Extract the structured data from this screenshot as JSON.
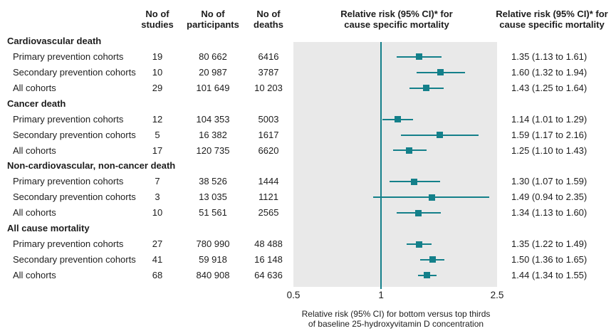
{
  "colors": {
    "accent": "#14808a",
    "plot_background": "#e9e9e9",
    "text": "#1d1d1d"
  },
  "header": {
    "studies": "No of\nstudies",
    "participants": "No of\nparticipants",
    "deaths": "No of\ndeaths",
    "plot": "Relative risk (95% CI)* for\ncause specific mortality",
    "values": "Relative risk (95% CI)* for\ncause specific mortality"
  },
  "axis": {
    "caption_line1": "Relative risk (95% CI) for bottom versus top thirds",
    "caption_line2": "of baseline 25-hydroxyvitamin D concentration"
  },
  "chart_data": {
    "type": "scatter",
    "subtype": "forest-plot",
    "title": "Relative risk (95% CI)* for cause specific mortality",
    "xlabel": "Relative risk (95% CI) for bottom versus top thirds of baseline 25-hydroxyvitamin D concentration",
    "xscale": "log",
    "xlim": [
      0.5,
      2.5
    ],
    "xticks": [
      0.5,
      1,
      2.5
    ],
    "xtick_labels": [
      "0.5",
      "1",
      "2.5"
    ],
    "reference_line": 1,
    "grid": false,
    "legend": false,
    "groups": [
      {
        "label": "Cardiovascular death",
        "rows": [
          {
            "label": "Primary prevention cohorts",
            "studies": "19",
            "participants": "80 662",
            "deaths": "6416",
            "rr": 1.35,
            "ci_low": 1.13,
            "ci_high": 1.61,
            "rr_text": "1.35 (1.13 to 1.61)"
          },
          {
            "label": "Secondary prevention cohorts",
            "studies": "10",
            "participants": "20 987",
            "deaths": "3787",
            "rr": 1.6,
            "ci_low": 1.32,
            "ci_high": 1.94,
            "rr_text": "1.60 (1.32 to 1.94)"
          },
          {
            "label": "All cohorts",
            "studies": "29",
            "participants": "101 649",
            "deaths": "10 203",
            "rr": 1.43,
            "ci_low": 1.25,
            "ci_high": 1.64,
            "rr_text": "1.43 (1.25 to 1.64)"
          }
        ]
      },
      {
        "label": "Cancer death",
        "rows": [
          {
            "label": "Primary prevention cohorts",
            "studies": "12",
            "participants": "104 353",
            "deaths": "5003",
            "rr": 1.14,
            "ci_low": 1.01,
            "ci_high": 1.29,
            "rr_text": "1.14 (1.01 to 1.29)"
          },
          {
            "label": "Secondary prevention cohorts",
            "studies": "5",
            "participants": "16 382",
            "deaths": "1617",
            "rr": 1.59,
            "ci_low": 1.17,
            "ci_high": 2.16,
            "rr_text": "1.59 (1.17 to 2.16)"
          },
          {
            "label": "All cohorts",
            "studies": "17",
            "participants": "120 735",
            "deaths": "6620",
            "rr": 1.25,
            "ci_low": 1.1,
            "ci_high": 1.43,
            "rr_text": "1.25 (1.10 to 1.43)"
          }
        ]
      },
      {
        "label": "Non-cardiovascular, non-cancer death",
        "rows": [
          {
            "label": "Primary prevention cohorts",
            "studies": "7",
            "participants": "38 526",
            "deaths": "1444",
            "rr": 1.3,
            "ci_low": 1.07,
            "ci_high": 1.59,
            "rr_text": "1.30 (1.07 to 1.59)"
          },
          {
            "label": "Secondary prevention cohorts",
            "studies": "3",
            "participants": "13 035",
            "deaths": "1121",
            "rr": 1.49,
            "ci_low": 0.94,
            "ci_high": 2.35,
            "rr_text": "1.49 (0.94 to 2.35)"
          },
          {
            "label": "All cohorts",
            "studies": "10",
            "participants": "51 561",
            "deaths": "2565",
            "rr": 1.34,
            "ci_low": 1.13,
            "ci_high": 1.6,
            "rr_text": "1.34 (1.13 to 1.60)"
          }
        ]
      },
      {
        "label": "All cause mortality",
        "rows": [
          {
            "label": "Primary prevention cohorts",
            "studies": "27",
            "participants": "780 990",
            "deaths": "48 488",
            "rr": 1.35,
            "ci_low": 1.22,
            "ci_high": 1.49,
            "rr_text": "1.35 (1.22 to 1.49)"
          },
          {
            "label": "Secondary prevention cohorts",
            "studies": "41",
            "participants": "59 918",
            "deaths": "16 148",
            "rr": 1.5,
            "ci_low": 1.36,
            "ci_high": 1.65,
            "rr_text": "1.50 (1.36 to 1.65)"
          },
          {
            "label": "All cohorts",
            "studies": "68",
            "participants": "840 908",
            "deaths": "64 636",
            "rr": 1.44,
            "ci_low": 1.34,
            "ci_high": 1.55,
            "rr_text": "1.44 (1.34 to 1.55)"
          }
        ]
      }
    ]
  }
}
